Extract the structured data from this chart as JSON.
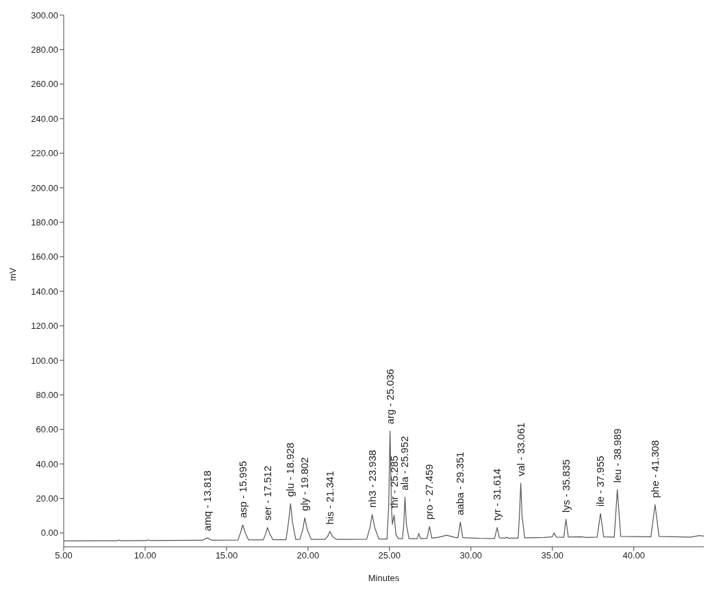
{
  "chart_data": {
    "type": "line",
    "xlabel": "Minutes",
    "ylabel": "mV",
    "xlim": [
      5,
      44.3
    ],
    "ylim": [
      -8,
      300
    ],
    "xticks": [
      {
        "value": 5,
        "label": "5.00"
      },
      {
        "value": 10,
        "label": "10.00"
      },
      {
        "value": 15,
        "label": "15.00"
      },
      {
        "value": 20,
        "label": "20.00"
      },
      {
        "value": 25,
        "label": "25.00"
      },
      {
        "value": 30,
        "label": "30.00"
      },
      {
        "value": 35,
        "label": "35.00"
      },
      {
        "value": 40,
        "label": "40.00"
      }
    ],
    "yticks": [
      {
        "value": 0,
        "label": "0.00"
      },
      {
        "value": 20,
        "label": "20.00"
      },
      {
        "value": 40,
        "label": "40.00"
      },
      {
        "value": 60,
        "label": "60.00"
      },
      {
        "value": 80,
        "label": "80.00"
      },
      {
        "value": 100,
        "label": "100.00"
      },
      {
        "value": 120,
        "label": "120.00"
      },
      {
        "value": 140,
        "label": "140.00"
      },
      {
        "value": 160,
        "label": "160.00"
      },
      {
        "value": 180,
        "label": "180.00"
      },
      {
        "value": 200,
        "label": "200.00"
      },
      {
        "value": 220,
        "label": "220.00"
      },
      {
        "value": 240,
        "label": "240.00"
      },
      {
        "value": 260,
        "label": "260.00"
      },
      {
        "value": 280,
        "label": "280.00"
      },
      {
        "value": 300,
        "label": "300.00"
      }
    ],
    "grid": false,
    "legend": false,
    "marker": "none",
    "line_style": "solid",
    "series": [
      {
        "color": "#555555",
        "x": [
          5.0,
          8.3,
          8.4,
          8.5,
          10.1,
          10.2,
          10.3,
          13.5,
          13.818,
          14.1,
          15.7,
          15.85,
          15.995,
          16.15,
          16.35,
          17.25,
          17.4,
          17.512,
          17.65,
          17.85,
          18.65,
          18.8,
          18.928,
          19.05,
          19.25,
          19.5,
          19.68,
          19.802,
          19.95,
          20.2,
          21.05,
          21.2,
          21.341,
          21.5,
          21.75,
          23.6,
          23.8,
          23.938,
          24.1,
          24.35,
          24.85,
          24.95,
          25.036,
          25.12,
          25.18,
          25.285,
          25.4,
          25.55,
          25.8,
          25.88,
          25.952,
          26.04,
          26.2,
          26.7,
          26.8,
          26.9,
          27.3,
          27.459,
          27.6,
          28.0,
          28.5,
          29.0,
          29.2,
          29.351,
          29.5,
          30.5,
          31.45,
          31.614,
          31.75,
          32.1,
          32.2,
          32.3,
          32.9,
          32.98,
          33.061,
          33.14,
          33.3,
          34.5,
          35.0,
          35.1,
          35.25,
          35.7,
          35.835,
          35.98,
          36.8,
          37.1,
          37.75,
          37.955,
          38.15,
          38.8,
          38.989,
          39.2,
          41.05,
          41.308,
          41.55,
          43.5,
          44.0,
          44.3
        ],
        "values": [
          -4.6,
          -4.5,
          -4.0,
          -4.5,
          -4.4,
          -3.9,
          -4.4,
          -4.2,
          -2.9,
          -4.2,
          -4.1,
          0,
          4.7,
          0,
          -4.0,
          -4.0,
          -0.5,
          3.2,
          -0.5,
          -3.9,
          -3.9,
          6,
          17.0,
          6,
          -3.8,
          -3.7,
          2,
          8.8,
          2,
          -3.7,
          -3.7,
          -2,
          0.9,
          -2,
          -3.7,
          -3.6,
          3,
          10.7,
          3,
          -3.5,
          -3.5,
          15,
          59,
          15,
          5,
          10.4,
          -1,
          -3.3,
          -3.3,
          5,
          20.7,
          5,
          -3.3,
          -3.3,
          -0.2,
          -3.2,
          -3.2,
          3.8,
          -3.0,
          -2.5,
          -1.3,
          -2.5,
          -2.8,
          6.3,
          -2.7,
          -3.1,
          -3.2,
          3.2,
          -2.8,
          -3.0,
          -2.5,
          -3.0,
          -3.0,
          10,
          28.9,
          10,
          -2.8,
          -2.6,
          -2.2,
          0,
          -2.4,
          -2.5,
          7.9,
          -2.3,
          -2.2,
          -2.6,
          -2.4,
          11.3,
          -2.2,
          -2.4,
          25.1,
          -2.0,
          -2.2,
          16.4,
          -2.0,
          -2.4,
          -1.5,
          -1.8
        ]
      }
    ],
    "annotations": [
      {
        "text": "amq - 13.818",
        "x": 13.818,
        "y": -2.9
      },
      {
        "text": "asp - 15.995",
        "x": 15.995,
        "y": 4.7
      },
      {
        "text": "ser - 17.512",
        "x": 17.512,
        "y": 3.2
      },
      {
        "text": "glu - 18.928",
        "x": 18.928,
        "y": 17.0
      },
      {
        "text": "gly - 19.802",
        "x": 19.802,
        "y": 8.8
      },
      {
        "text": "his - 21.341",
        "x": 21.341,
        "y": 0.9
      },
      {
        "text": "nh3 - 23.938",
        "x": 23.938,
        "y": 10.7
      },
      {
        "text": "arg - 25.036",
        "x": 25.036,
        "y": 59
      },
      {
        "text": "thr - 25.285",
        "x": 25.285,
        "y": 10.4
      },
      {
        "text": "ala - 25.952",
        "x": 25.952,
        "y": 20.7
      },
      {
        "text": "pro - 27.459",
        "x": 27.459,
        "y": 3.8
      },
      {
        "text": "aaba - 29.351",
        "x": 29.351,
        "y": 6.3
      },
      {
        "text": "tyr - 31.614",
        "x": 31.614,
        "y": 3.2
      },
      {
        "text": "val - 33.061",
        "x": 33.061,
        "y": 28.9
      },
      {
        "text": "lys - 35.835",
        "x": 35.835,
        "y": 7.9
      },
      {
        "text": "ile - 37.955",
        "x": 37.955,
        "y": 11.3
      },
      {
        "text": "leu - 38.989",
        "x": 38.989,
        "y": 25.1
      },
      {
        "text": "phe - 41.308",
        "x": 41.308,
        "y": 16.4
      }
    ]
  }
}
